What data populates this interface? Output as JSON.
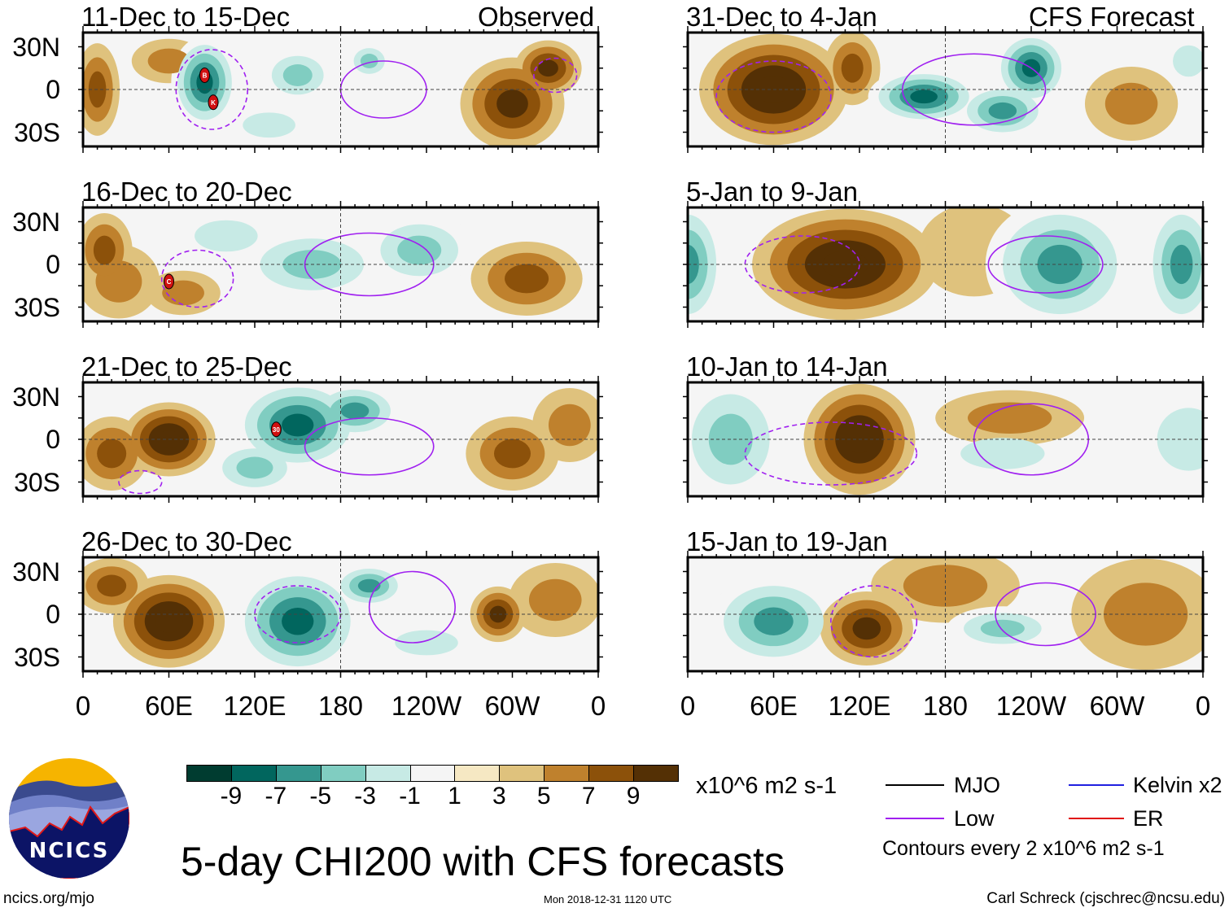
{
  "figure_title": "5-day CHI200 with CFS forecasts",
  "observed_label": "Observed",
  "forecast_label": "CFS Forecast",
  "lat_labels": [
    "30N",
    "0",
    "30S"
  ],
  "lon_labels": [
    "0",
    "60E",
    "120E",
    "180",
    "120W",
    "60W",
    "0"
  ],
  "colorbar": {
    "units": "x10^6 m2 s-1",
    "labels": [
      "-9",
      "-7",
      "-5",
      "-3",
      "-1",
      "1",
      "3",
      "5",
      "7",
      "9"
    ],
    "colors": [
      "#003c30",
      "#01665e",
      "#35978f",
      "#80cdc1",
      "#c7eae5",
      "#f5f5f5",
      "#f6e8c3",
      "#dfc27d",
      "#bf812d",
      "#8c510a",
      "#543005"
    ]
  },
  "legend": {
    "items": [
      {
        "label": "MJO",
        "color": "#000000"
      },
      {
        "label": "Kelvin x2",
        "color": "#2020e0"
      },
      {
        "label": "Low",
        "color": "#a020f0"
      },
      {
        "label": "ER",
        "color": "#e01010"
      }
    ],
    "contour_note": "Contours every 2 x10^6 m2 s-1"
  },
  "logo": {
    "text": "NCICS"
  },
  "footer": {
    "url": "ncics.org/mjo",
    "timestamp": "Mon 2018-12-31 1120 UTC",
    "credit": "Carl Schreck (cjschrec@ncsu.edu)"
  },
  "chart_data": {
    "type": "heatmap",
    "variable": "CHI200 anomaly",
    "lon_range": [
      0,
      360
    ],
    "lat_range": [
      -40,
      40
    ],
    "panels": [
      {
        "title": "11-Dec to 15-Dec",
        "kind": "observed",
        "anomalies": [
          [
            10,
            0,
            5,
            12,
            25
          ],
          [
            85,
            5,
            -9,
            18,
            25
          ],
          [
            150,
            10,
            -5,
            20,
            15
          ],
          [
            200,
            20,
            -5,
            12,
            10
          ],
          [
            300,
            -10,
            7,
            28,
            25
          ],
          [
            325,
            15,
            7,
            18,
            15
          ],
          [
            130,
            -25,
            -3,
            25,
            12
          ],
          [
            60,
            20,
            3,
            20,
            12
          ]
        ],
        "low_contours": [
          [
            210,
            0,
            30,
            20,
            false
          ],
          [
            90,
            0,
            25,
            28,
            true
          ],
          [
            330,
            10,
            15,
            12,
            true
          ]
        ],
        "storms": [
          {
            "label": "B",
            "lon": 85,
            "lat": 10
          },
          {
            "label": "K",
            "lon": 91,
            "lat": -9
          }
        ]
      },
      {
        "title": "16-Dec to 20-Dec",
        "kind": "observed",
        "anomalies": [
          [
            15,
            10,
            5,
            15,
            20
          ],
          [
            25,
            -12,
            3,
            22,
            20
          ],
          [
            160,
            0,
            -5,
            40,
            20
          ],
          [
            235,
            10,
            -5,
            30,
            20
          ],
          [
            310,
            -10,
            5,
            30,
            20
          ],
          [
            100,
            20,
            -3,
            30,
            15
          ],
          [
            70,
            -20,
            3,
            20,
            12
          ]
        ],
        "low_contours": [
          [
            200,
            0,
            45,
            22,
            false
          ],
          [
            80,
            -10,
            25,
            20,
            true
          ]
        ],
        "storms": [
          {
            "label": "C",
            "lon": 60,
            "lat": -12
          }
        ]
      },
      {
        "title": "21-Dec to 25-Dec",
        "kind": "observed",
        "anomalies": [
          [
            60,
            0,
            9,
            25,
            20
          ],
          [
            20,
            -10,
            5,
            20,
            20
          ],
          [
            150,
            10,
            -9,
            35,
            25
          ],
          [
            190,
            20,
            -7,
            25,
            15
          ],
          [
            120,
            -20,
            -5,
            25,
            15
          ],
          [
            300,
            -10,
            5,
            25,
            20
          ],
          [
            340,
            10,
            3,
            20,
            20
          ]
        ],
        "low_contours": [
          [
            200,
            -5,
            45,
            20,
            false
          ],
          [
            40,
            -30,
            15,
            8,
            true
          ]
        ],
        "storms": [
          {
            "label": "30",
            "lon": 135,
            "lat": 7
          }
        ]
      },
      {
        "title": "26-Dec to 30-Dec",
        "kind": "observed",
        "anomalies": [
          [
            60,
            -5,
            9,
            30,
            25
          ],
          [
            20,
            20,
            5,
            20,
            15
          ],
          [
            150,
            -5,
            -9,
            35,
            30
          ],
          [
            200,
            20,
            -7,
            20,
            12
          ],
          [
            290,
            0,
            7,
            15,
            15
          ],
          [
            330,
            10,
            3,
            25,
            20
          ],
          [
            240,
            -20,
            -3,
            30,
            12
          ]
        ],
        "low_contours": [
          [
            230,
            5,
            30,
            25,
            false
          ],
          [
            150,
            0,
            30,
            20,
            true
          ]
        ],
        "storms": []
      },
      {
        "title": "31-Dec to 4-Jan",
        "kind": "forecast",
        "anomalies": [
          [
            60,
            0,
            9,
            40,
            30
          ],
          [
            115,
            15,
            5,
            15,
            20
          ],
          [
            165,
            -5,
            -9,
            30,
            15
          ],
          [
            240,
            15,
            -9,
            20,
            20
          ],
          [
            220,
            -15,
            -7,
            25,
            15
          ],
          [
            310,
            -10,
            3,
            25,
            20
          ],
          [
            350,
            20,
            -3,
            15,
            15
          ]
        ],
        "low_contours": [
          [
            200,
            0,
            50,
            25,
            false
          ],
          [
            60,
            -5,
            40,
            25,
            true
          ]
        ],
        "storms": []
      },
      {
        "title": "5-Jan to 9-Jan",
        "kind": "forecast",
        "anomalies": [
          [
            110,
            0,
            9,
            50,
            30
          ],
          [
            0,
            0,
            -7,
            20,
            35
          ],
          [
            260,
            0,
            -7,
            40,
            35
          ],
          [
            345,
            0,
            -7,
            20,
            35
          ],
          [
            200,
            10,
            1,
            30,
            25
          ]
        ],
        "low_contours": [
          [
            250,
            0,
            40,
            20,
            false
          ],
          [
            80,
            0,
            40,
            20,
            true
          ]
        ],
        "storms": []
      },
      {
        "title": "10-Jan to 14-Jan",
        "kind": "forecast",
        "anomalies": [
          [
            120,
            0,
            9,
            30,
            30
          ],
          [
            30,
            0,
            -5,
            30,
            35
          ],
          [
            350,
            0,
            -3,
            30,
            30
          ],
          [
            220,
            -10,
            -3,
            40,
            15
          ],
          [
            225,
            15,
            3,
            40,
            15
          ]
        ],
        "low_contours": [
          [
            240,
            0,
            40,
            25,
            false
          ],
          [
            100,
            -10,
            60,
            22,
            true
          ]
        ],
        "storms": []
      },
      {
        "title": "15-Jan to 19-Jan",
        "kind": "forecast",
        "anomalies": [
          [
            60,
            -5,
            -7,
            35,
            25
          ],
          [
            125,
            -10,
            7,
            25,
            20
          ],
          [
            220,
            -10,
            -5,
            30,
            12
          ],
          [
            180,
            20,
            3,
            40,
            20
          ],
          [
            320,
            0,
            3,
            40,
            30
          ]
        ],
        "low_contours": [
          [
            250,
            0,
            35,
            22,
            false
          ],
          [
            130,
            -5,
            30,
            25,
            true
          ]
        ],
        "storms": []
      }
    ]
  }
}
